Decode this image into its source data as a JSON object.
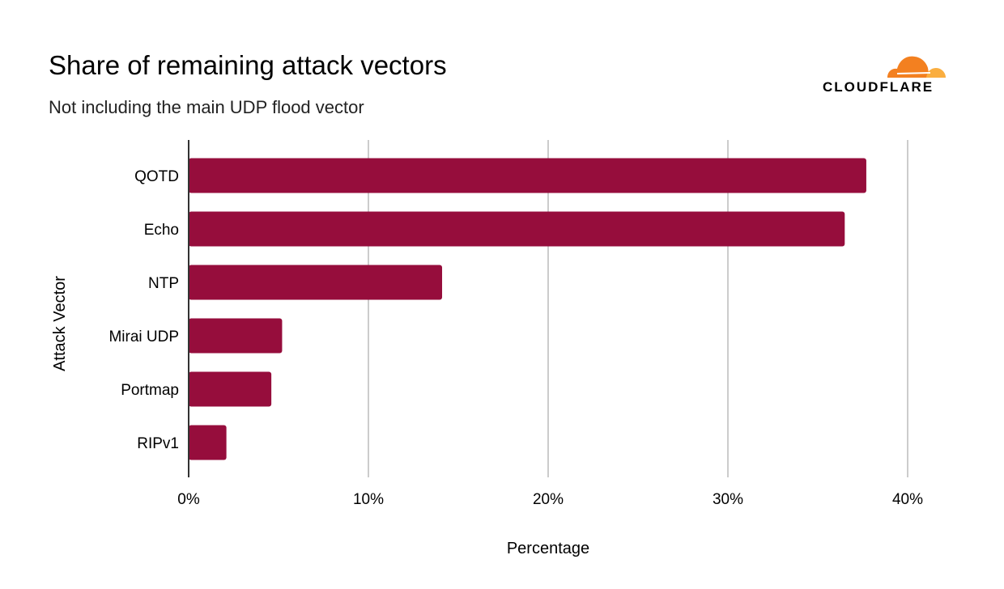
{
  "chart_data": {
    "type": "bar",
    "orientation": "horizontal",
    "title": "Share of remaining attack vectors",
    "subtitle": "Not including the main UDP flood vector",
    "xlabel": "Percentage",
    "ylabel": "Attack Vector",
    "categories": [
      "QOTD",
      "Echo",
      "NTP",
      "Mirai UDP",
      "Portmap",
      "RIPv1"
    ],
    "values": [
      37.7,
      36.5,
      14.1,
      5.2,
      4.6,
      2.1
    ],
    "xlim": [
      0,
      40
    ],
    "xticks": [
      "0%",
      "10%",
      "20%",
      "30%",
      "40%"
    ],
    "grid": true,
    "bar_color": "#960d3c"
  },
  "logo": {
    "text": "CLOUDFLARE",
    "colors": [
      "#f38020",
      "#faae40"
    ]
  }
}
